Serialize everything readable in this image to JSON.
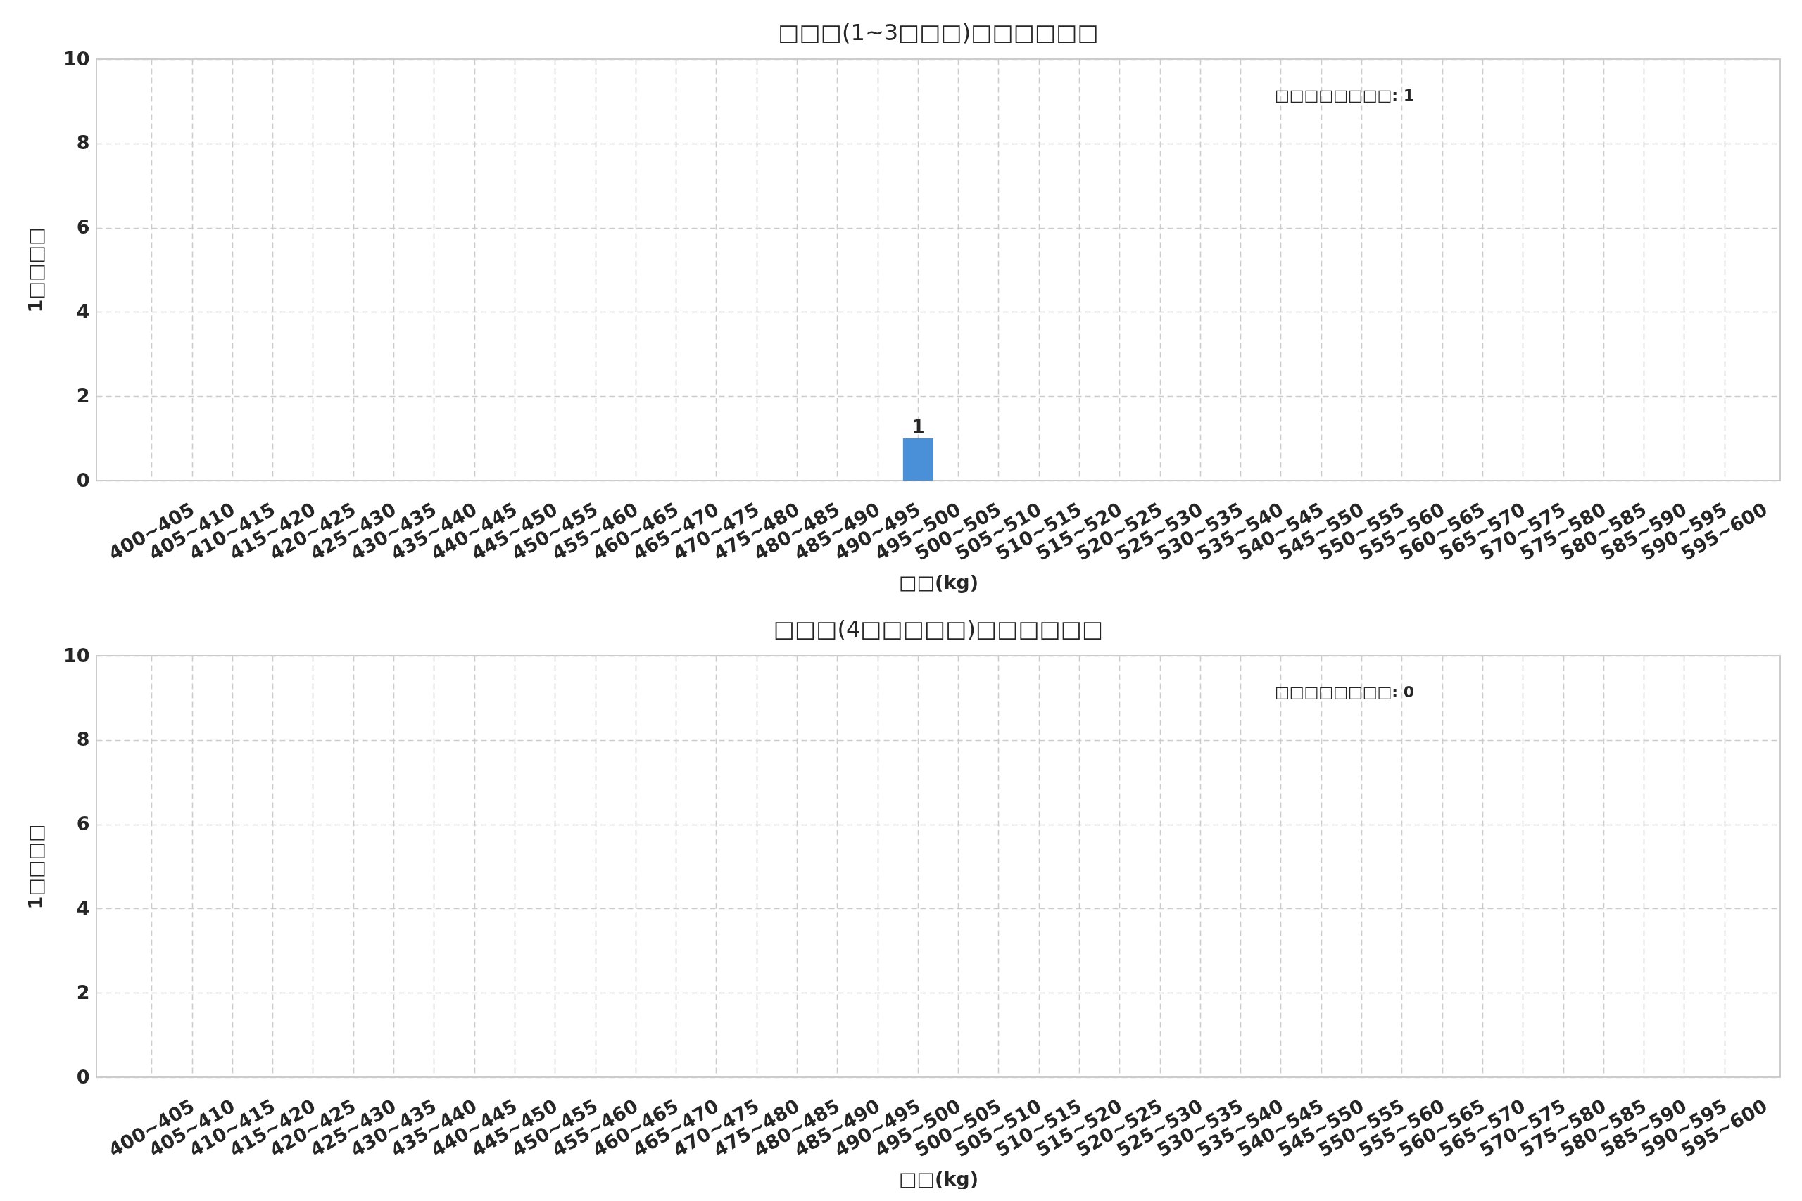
{
  "chart_data": [
    {
      "type": "bar",
      "title": "□□□(1~3□□□)□□□□□□",
      "xlabel": "□□(kg)",
      "ylabel": "1□□□□",
      "categories": [
        "400~405",
        "405~410",
        "410~415",
        "415~420",
        "420~425",
        "425~430",
        "430~435",
        "435~440",
        "440~445",
        "445~450",
        "450~455",
        "455~460",
        "460~465",
        "465~470",
        "470~475",
        "475~480",
        "480~485",
        "485~490",
        "490~495",
        "495~500",
        "500~505",
        "505~510",
        "510~515",
        "515~520",
        "520~525",
        "525~530",
        "530~535",
        "535~540",
        "540~545",
        "545~550",
        "550~555",
        "555~560",
        "560~565",
        "565~570",
        "570~575",
        "575~580",
        "580~585",
        "585~590",
        "590~595",
        "595~600"
      ],
      "values": [
        0,
        0,
        0,
        0,
        0,
        0,
        0,
        0,
        0,
        0,
        0,
        0,
        0,
        0,
        0,
        0,
        0,
        0,
        0,
        1,
        0,
        0,
        0,
        0,
        0,
        0,
        0,
        0,
        0,
        0,
        0,
        0,
        0,
        0,
        0,
        0,
        0,
        0,
        0,
        0
      ],
      "value_labels": [
        null,
        null,
        null,
        null,
        null,
        null,
        null,
        null,
        null,
        null,
        null,
        null,
        null,
        null,
        null,
        null,
        null,
        null,
        null,
        "1",
        null,
        null,
        null,
        null,
        null,
        null,
        null,
        null,
        null,
        null,
        null,
        null,
        null,
        null,
        null,
        null,
        null,
        null,
        null,
        null
      ],
      "color": "#4a90d9",
      "ylim": [
        0,
        10
      ],
      "yticks": [
        0,
        2,
        4,
        6,
        8,
        10
      ],
      "grid": true,
      "annotations": [
        "□□□□□□□□: 1"
      ]
    },
    {
      "type": "bar",
      "title": "□□□(4□□□□□)□□□□□□",
      "xlabel": "□□(kg)",
      "ylabel": "1□□□□",
      "categories": [
        "400~405",
        "405~410",
        "410~415",
        "415~420",
        "420~425",
        "425~430",
        "430~435",
        "435~440",
        "440~445",
        "445~450",
        "450~455",
        "455~460",
        "460~465",
        "465~470",
        "470~475",
        "475~480",
        "480~485",
        "485~490",
        "490~495",
        "495~500",
        "500~505",
        "505~510",
        "510~515",
        "515~520",
        "520~525",
        "525~530",
        "530~535",
        "535~540",
        "540~545",
        "545~550",
        "550~555",
        "555~560",
        "560~565",
        "565~570",
        "570~575",
        "575~580",
        "580~585",
        "585~590",
        "590~595",
        "595~600"
      ],
      "values": [
        0,
        0,
        0,
        0,
        0,
        0,
        0,
        0,
        0,
        0,
        0,
        0,
        0,
        0,
        0,
        0,
        0,
        0,
        0,
        0,
        0,
        0,
        0,
        0,
        0,
        0,
        0,
        0,
        0,
        0,
        0,
        0,
        0,
        0,
        0,
        0,
        0,
        0,
        0,
        0
      ],
      "color": "#4a90d9",
      "ylim": [
        0,
        10
      ],
      "yticks": [
        0,
        2,
        4,
        6,
        8,
        10
      ],
      "grid": true,
      "annotations": [
        "□□□□□□□□: 0"
      ]
    }
  ]
}
